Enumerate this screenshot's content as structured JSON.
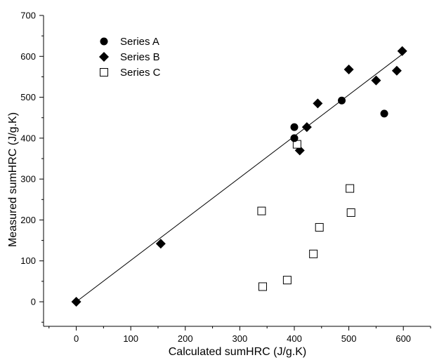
{
  "chart_data": {
    "type": "scatter",
    "title": "",
    "xlabel": "Calculated sumHRC (J/g.K)",
    "ylabel": "Measured sumHRC (J/g.K)",
    "xlim": [
      -60,
      650
    ],
    "ylim": [
      -60,
      700
    ],
    "xticks": [
      "0",
      "100",
      "200",
      "300",
      "400",
      "500",
      "600"
    ],
    "yticks": [
      "0",
      "100",
      "200",
      "300",
      "400",
      "500",
      "600",
      "700"
    ],
    "grid": false,
    "legend_position": "top-left",
    "series": [
      {
        "name": "Series A",
        "marker": "filled-circle",
        "color": "#000000",
        "points": [
          [
            400,
            427
          ],
          [
            400,
            400
          ],
          [
            487,
            492
          ],
          [
            565,
            460
          ]
        ]
      },
      {
        "name": "Series B",
        "marker": "filled-diamond",
        "color": "#000000",
        "points": [
          [
            0,
            0
          ],
          [
            155,
            142
          ],
          [
            410,
            370
          ],
          [
            423,
            427
          ],
          [
            443,
            485
          ],
          [
            500,
            568
          ],
          [
            550,
            541
          ],
          [
            588,
            565
          ],
          [
            598,
            613
          ]
        ]
      },
      {
        "name": "Series C",
        "marker": "open-square",
        "color": "#000000",
        "points": [
          [
            340,
            222
          ],
          [
            342,
            37
          ],
          [
            387,
            53
          ],
          [
            405,
            385
          ],
          [
            435,
            117
          ],
          [
            446,
            182
          ],
          [
            502,
            277
          ],
          [
            504,
            218
          ]
        ]
      }
    ],
    "fit_line": {
      "from": [
        0,
        0
      ],
      "to": [
        600,
        607
      ]
    }
  }
}
